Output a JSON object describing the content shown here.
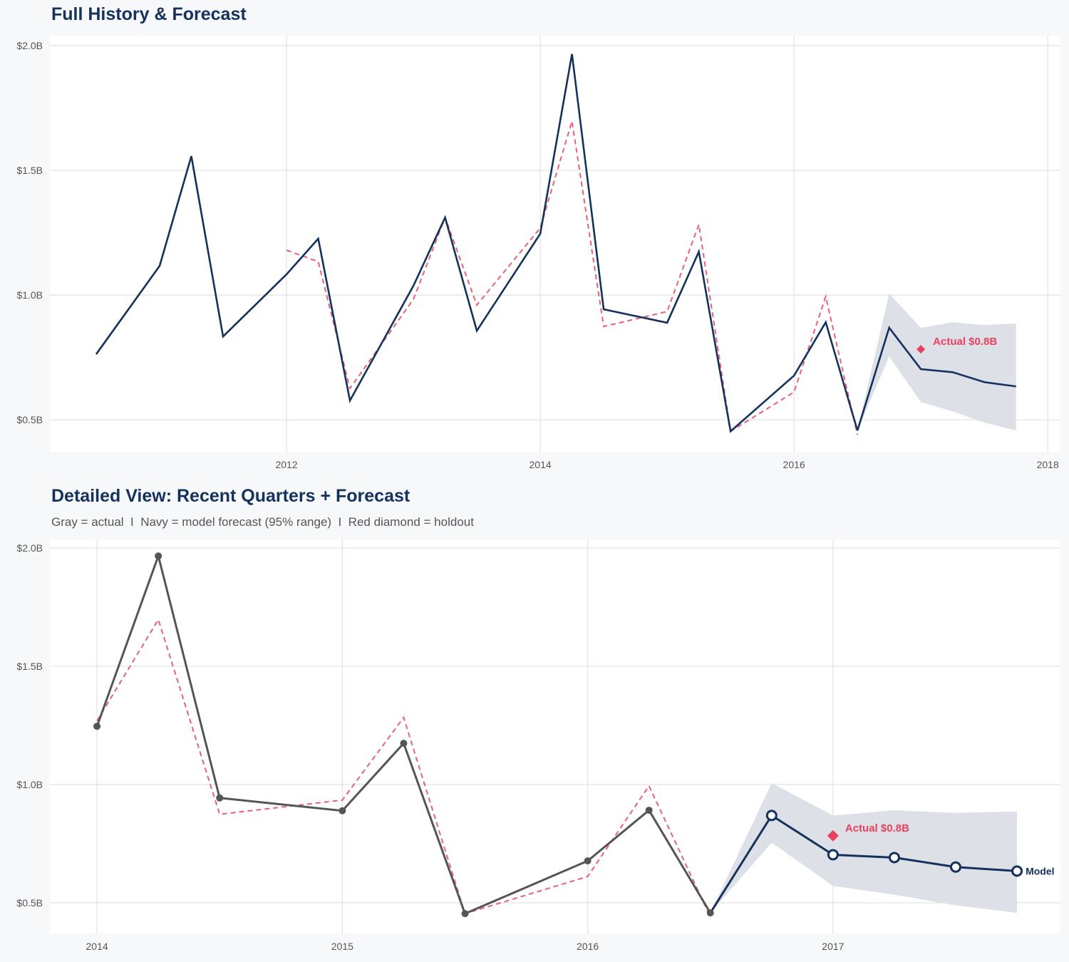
{
  "chart_data": [
    {
      "type": "line",
      "title": "Full History & Forecast",
      "xlim": [
        2010.135,
        2018.1
      ],
      "ylim": [
        0.369,
        2.04
      ],
      "x_ticks": [
        2012,
        2014,
        2016,
        2018
      ],
      "x_tick_labels": [
        "2012",
        "2014",
        "2016",
        "2018"
      ],
      "y_ticks": [
        0.5,
        1.0,
        1.5,
        2.0
      ],
      "y_tick_labels": [
        "$0.5B",
        "$1.0B",
        "$1.5B",
        "$2.0B"
      ],
      "grid": true,
      "actual": {
        "x": [
          2010.5,
          2011.0,
          2011.25,
          2011.5,
          2012.0,
          2012.25,
          2012.5,
          2013.0,
          2013.25,
          2013.5,
          2014.0,
          2014.25,
          2014.5,
          2015.0,
          2015.25,
          2015.5,
          2016.0,
          2016.25,
          2016.5
        ],
        "y": [
          0.763,
          1.117,
          1.557,
          0.834,
          1.083,
          1.226,
          0.577,
          1.037,
          1.311,
          0.857,
          1.246,
          1.966,
          0.943,
          0.889,
          1.174,
          0.454,
          0.677,
          0.891,
          0.457
        ],
        "color": "#14325c"
      },
      "fitted": {
        "x": [
          2012.0,
          2012.25,
          2012.5,
          2013.0,
          2013.25,
          2013.5,
          2014.0,
          2014.25,
          2014.5,
          2015.0,
          2015.25,
          2015.5,
          2016.0,
          2016.25,
          2016.5
        ],
        "y": [
          1.18,
          1.134,
          0.626,
          0.983,
          1.311,
          0.96,
          1.269,
          1.697,
          0.874,
          0.934,
          1.283,
          0.454,
          0.611,
          0.994,
          0.44
        ],
        "color": "#e8607a"
      },
      "forecast": {
        "x": [
          2016.5,
          2016.75,
          2017.0,
          2017.25,
          2017.5,
          2017.75
        ],
        "y": [
          0.457,
          0.869,
          0.703,
          0.691,
          0.651,
          0.634
        ],
        "lower": [
          0.457,
          0.754,
          0.571,
          0.534,
          0.489,
          0.457
        ],
        "upper": [
          0.457,
          1.006,
          0.869,
          0.891,
          0.88,
          0.886
        ],
        "color": "#14325c",
        "band_color": "#dde1e7"
      },
      "holdout": {
        "x": 2017.0,
        "y": 0.783,
        "label": "Actual $0.8B",
        "color": "#e8415f"
      }
    },
    {
      "type": "line",
      "title": "Detailed View: Recent Quarters + Forecast",
      "subtitle": "Gray = actual  I  Navy = model forecast (95% range)  I  Red diamond = holdout",
      "xlim": [
        2013.808,
        2017.927
      ],
      "ylim": [
        0.37,
        2.036
      ],
      "x_ticks": [
        2014,
        2015,
        2016,
        2017
      ],
      "x_tick_labels": [
        "2014",
        "2015",
        "2016",
        "2017"
      ],
      "y_ticks": [
        0.5,
        1.0,
        1.5,
        2.0
      ],
      "y_tick_labels": [
        "$0.5B",
        "$1.0B",
        "$1.5B",
        "$2.0B"
      ],
      "grid": true,
      "actual": {
        "x": [
          2014.0,
          2014.25,
          2014.5,
          2015.0,
          2015.25,
          2015.5,
          2016.0,
          2016.25,
          2016.5
        ],
        "y": [
          1.246,
          1.966,
          0.943,
          0.889,
          1.174,
          0.454,
          0.677,
          0.891,
          0.457
        ],
        "color": "#555555"
      },
      "fitted": {
        "x": [
          2014.0,
          2014.25,
          2014.5,
          2015.0,
          2015.25,
          2015.5,
          2016.0,
          2016.25,
          2016.5
        ],
        "y": [
          1.269,
          1.697,
          0.874,
          0.934,
          1.283,
          0.454,
          0.611,
          0.994,
          0.44
        ],
        "color": "#e8607a"
      },
      "forecast": {
        "x": [
          2016.5,
          2016.75,
          2017.0,
          2017.25,
          2017.5,
          2017.75
        ],
        "y": [
          0.457,
          0.869,
          0.703,
          0.691,
          0.651,
          0.634
        ],
        "lower": [
          0.457,
          0.754,
          0.571,
          0.534,
          0.489,
          0.457
        ],
        "upper": [
          0.457,
          1.006,
          0.869,
          0.891,
          0.88,
          0.886
        ],
        "color": "#14325c",
        "band_color": "#dde1e7",
        "end_label": "Model"
      },
      "holdout": {
        "x": 2017.0,
        "y": 0.783,
        "label": "Actual $0.8B",
        "color": "#e8415f"
      }
    }
  ]
}
